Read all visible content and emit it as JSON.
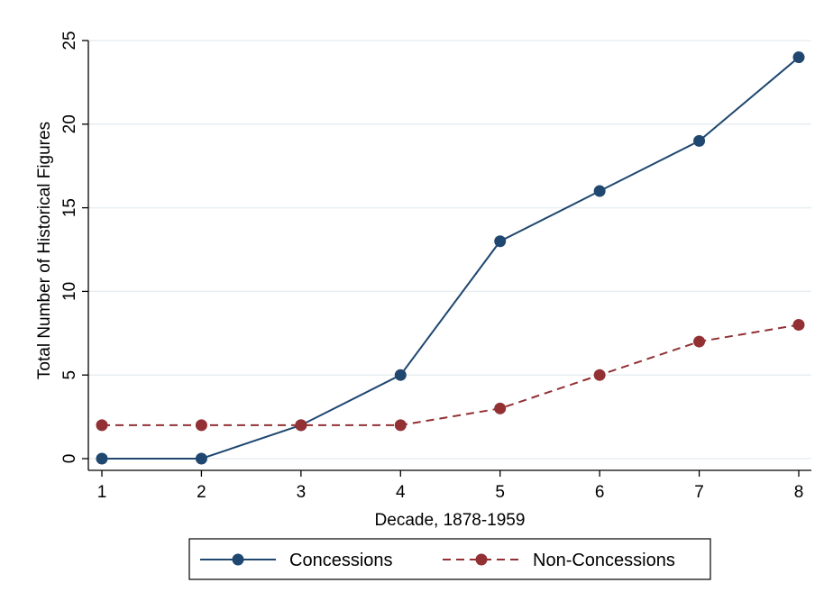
{
  "chart_data": {
    "type": "line",
    "title": "",
    "xlabel": "Decade, 1878-1959",
    "ylabel": "Total Number of Historical Figures",
    "x": [
      1,
      2,
      3,
      4,
      5,
      6,
      7,
      8
    ],
    "xlim": [
      1,
      8
    ],
    "ylim": [
      0,
      25
    ],
    "xticks": [
      "1",
      "2",
      "3",
      "4",
      "5",
      "6",
      "7",
      "8"
    ],
    "yticks": [
      "0",
      "5",
      "10",
      "15",
      "20",
      "25"
    ],
    "grid": "horizontal",
    "legend_position": "bottom",
    "series": [
      {
        "name": "Concessions",
        "values": [
          0,
          0,
          2,
          5,
          13,
          16,
          19,
          24
        ],
        "color": "#1f4770",
        "line_style": "solid",
        "marker": "circle"
      },
      {
        "name": "Non-Concessions",
        "values": [
          2,
          2,
          2,
          2,
          3,
          5,
          7,
          8
        ],
        "color": "#923034",
        "line_style": "dashed",
        "marker": "circle"
      }
    ]
  }
}
